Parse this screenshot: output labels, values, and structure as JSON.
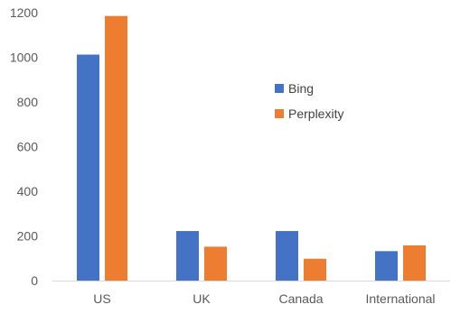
{
  "chart_data": {
    "type": "bar",
    "title": "",
    "xlabel": "",
    "ylabel": "",
    "categories": [
      "US",
      "UK",
      "Canada",
      "International"
    ],
    "series": [
      {
        "name": "Bing",
        "color": "#4472C4",
        "values": [
          1012,
          222,
          222,
          132
        ]
      },
      {
        "name": "Perplexity",
        "color": "#ED7D31",
        "values": [
          1185,
          152,
          98,
          158
        ]
      }
    ],
    "ylim": [
      0,
      1200
    ],
    "yticks": [
      0,
      200,
      400,
      600,
      800,
      1000,
      1200
    ],
    "grid": false,
    "legend_position": "right-center"
  }
}
